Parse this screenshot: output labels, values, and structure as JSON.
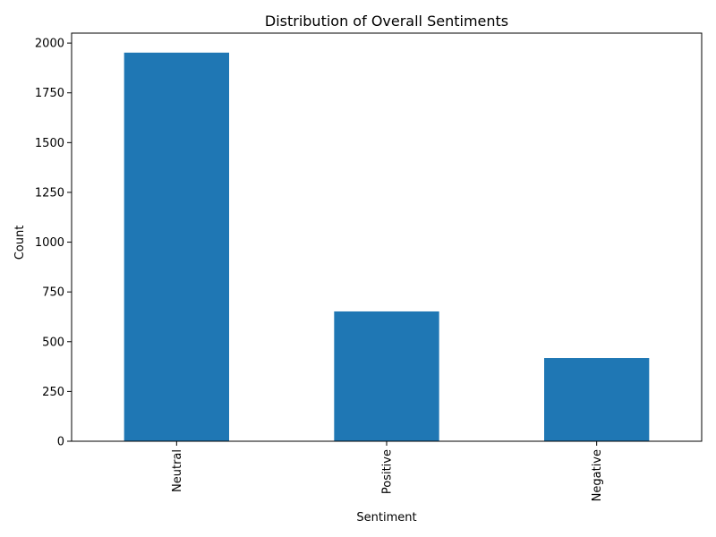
{
  "chart_data": {
    "type": "bar",
    "title": "Distribution of Overall Sentiments",
    "xlabel": "Sentiment",
    "ylabel": "Count",
    "categories": [
      "Neutral",
      "Positive",
      "Negative"
    ],
    "values": [
      1952,
      652,
      418
    ],
    "ylim": [
      0,
      2050
    ],
    "yticks": [
      0,
      250,
      500,
      750,
      1000,
      1250,
      1500,
      1750,
      2000
    ],
    "bar_color": "#1f77b4",
    "grid": false,
    "legend": "none"
  }
}
